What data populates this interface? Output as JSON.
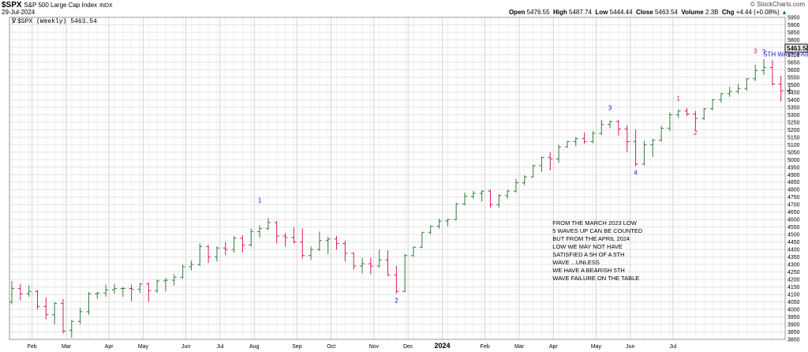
{
  "header": {
    "symbol": "$SPX",
    "description": "S&P 500 Large Cap Index",
    "exchange": "INDX",
    "date": "29-Jul-2024",
    "brand": "© StockCharts.com",
    "open_label": "Open",
    "open": "5476.55",
    "high_label": "High",
    "high": "5487.74",
    "low_label": "Low",
    "low": "5444.44",
    "close_label": "Close",
    "close": "5463.54",
    "volume_label": "Volume",
    "volume": "2.3B",
    "chg_label": "Chg",
    "chg": "+4.44 (+0.08%)",
    "chg_icon": "up-arrow-icon"
  },
  "legend": {
    "icon": "chart-type-icon",
    "text": "$SPX (Weekly) 5463.54"
  },
  "chart_data": {
    "type": "ohlc",
    "title": "$SPX S&P 500 Large Cap Index",
    "series_name": "$SPX (Weekly) 5463.54",
    "ylim": [
      3800,
      5950
    ],
    "y_ticks": [
      3800,
      3850,
      3900,
      3950,
      4000,
      4050,
      4100,
      4150,
      4200,
      4250,
      4300,
      4350,
      4400,
      4450,
      4500,
      4550,
      4600,
      4650,
      4700,
      4750,
      4800,
      4850,
      4900,
      4950,
      5000,
      5050,
      5100,
      5150,
      5200,
      5250,
      5300,
      5350,
      5400,
      5450,
      5500,
      5550,
      5600,
      5650,
      5700,
      5750,
      5800,
      5850,
      5900,
      5950
    ],
    "x_ticks": [
      {
        "label": "Feb",
        "bar": 2
      },
      {
        "label": "Mar",
        "bar": 6
      },
      {
        "label": "Apr",
        "bar": 11
      },
      {
        "label": "May",
        "bar": 15
      },
      {
        "label": "Jun",
        "bar": 20
      },
      {
        "label": "Jul",
        "bar": 24
      },
      {
        "label": "Aug",
        "bar": 28
      },
      {
        "label": "Sep",
        "bar": 33
      },
      {
        "label": "Oct",
        "bar": 37
      },
      {
        "label": "Nov",
        "bar": 42
      },
      {
        "label": "Dec",
        "bar": 46
      },
      {
        "label": "2024",
        "bar": 50,
        "bold": true
      },
      {
        "label": "Feb",
        "bar": 55
      },
      {
        "label": "Mar",
        "bar": 59
      },
      {
        "label": "Apr",
        "bar": 63
      },
      {
        "label": "May",
        "bar": 68
      },
      {
        "label": "Jun",
        "bar": 72
      },
      {
        "label": "Jul",
        "bar": 77
      }
    ],
    "colors": {
      "up": "#2e7d32",
      "down": "#d81b60",
      "wave_blue": "#1a1ad6",
      "wave_pink": "#d81b60",
      "grid": "#e3e3e3"
    },
    "bars": [
      [
        4050,
        4190,
        4035,
        4140
      ],
      [
        4140,
        4170,
        4060,
        4105
      ],
      [
        4105,
        4160,
        4085,
        4120
      ],
      [
        4120,
        4130,
        4000,
        4020
      ],
      [
        4020,
        4080,
        3935,
        3965
      ],
      [
        3965,
        4050,
        3900,
        4040
      ],
      [
        4040,
        4070,
        3840,
        3855
      ],
      [
        3860,
        3930,
        3810,
        3920
      ],
      [
        3920,
        4010,
        3900,
        3985
      ],
      [
        3985,
        4115,
        3965,
        4105
      ],
      [
        4105,
        4115,
        4070,
        4110
      ],
      [
        4110,
        4165,
        4085,
        4130
      ],
      [
        4130,
        4170,
        4105,
        4140
      ],
      [
        4140,
        4150,
        4085,
        4140
      ],
      [
        4140,
        4165,
        4055,
        4135
      ],
      [
        4135,
        4175,
        4110,
        4170
      ],
      [
        4170,
        4180,
        4050,
        4125
      ],
      [
        4125,
        4200,
        4110,
        4190
      ],
      [
        4190,
        4210,
        4120,
        4195
      ],
      [
        4195,
        4235,
        4160,
        4215
      ],
      [
        4215,
        4300,
        4205,
        4285
      ],
      [
        4285,
        4325,
        4260,
        4300
      ],
      [
        4300,
        4440,
        4290,
        4420
      ],
      [
        4420,
        4430,
        4310,
        4350
      ],
      [
        4350,
        4420,
        4320,
        4410
      ],
      [
        4410,
        4450,
        4360,
        4400
      ],
      [
        4400,
        4490,
        4380,
        4475
      ],
      [
        4475,
        4495,
        4380,
        4430
      ],
      [
        4430,
        4540,
        4420,
        4520
      ],
      [
        4520,
        4560,
        4480,
        4540
      ],
      [
        4540,
        4610,
        4530,
        4580
      ],
      [
        4580,
        4590,
        4440,
        4490
      ],
      [
        4490,
        4510,
        4420,
        4480
      ],
      [
        4480,
        4550,
        4440,
        4450
      ],
      [
        4450,
        4540,
        4340,
        4360
      ],
      [
        4360,
        4420,
        4330,
        4400
      ],
      [
        4400,
        4520,
        4390,
        4460
      ],
      [
        4460,
        4485,
        4370,
        4470
      ],
      [
        4470,
        4490,
        4400,
        4440
      ],
      [
        4440,
        4460,
        4320,
        4375
      ],
      [
        4375,
        4380,
        4265,
        4290
      ],
      [
        4290,
        4345,
        4240,
        4305
      ],
      [
        4305,
        4345,
        4235,
        4290
      ],
      [
        4290,
        4400,
        4280,
        4330
      ],
      [
        4330,
        4395,
        4225,
        4230
      ],
      [
        4230,
        4290,
        4105,
        4120
      ],
      [
        4120,
        4370,
        4115,
        4360
      ],
      [
        4360,
        4420,
        4350,
        4415
      ],
      [
        4415,
        4515,
        4410,
        4515
      ],
      [
        4515,
        4560,
        4500,
        4555
      ],
      [
        4555,
        4605,
        4540,
        4590
      ],
      [
        4590,
        4605,
        4555,
        4600
      ],
      [
        4600,
        4710,
        4595,
        4705
      ],
      [
        4705,
        4780,
        4695,
        4755
      ],
      [
        4755,
        4790,
        4740,
        4775
      ],
      [
        4775,
        4795,
        4720,
        4790
      ],
      [
        4790,
        4800,
        4680,
        4700
      ],
      [
        4700,
        4770,
        4680,
        4760
      ],
      [
        4760,
        4800,
        4740,
        4790
      ],
      [
        4790,
        4870,
        4780,
        4845
      ],
      [
        4845,
        4895,
        4830,
        4885
      ],
      [
        4885,
        4965,
        4880,
        4960
      ],
      [
        4960,
        5020,
        4920,
        5015
      ],
      [
        5015,
        5050,
        4930,
        5005
      ],
      [
        5005,
        5100,
        4980,
        5085
      ],
      [
        5085,
        5125,
        5080,
        5120
      ],
      [
        5120,
        5150,
        5090,
        5140
      ],
      [
        5140,
        5180,
        5105,
        5120
      ],
      [
        5120,
        5190,
        5110,
        5175
      ],
      [
        5175,
        5265,
        5165,
        5235
      ],
      [
        5235,
        5260,
        5210,
        5255
      ],
      [
        5255,
        5265,
        5160,
        5205
      ],
      [
        5205,
        5230,
        5050,
        5120
      ],
      [
        5120,
        5200,
        4955,
        4970
      ],
      [
        4970,
        5125,
        4960,
        5100
      ],
      [
        5100,
        5140,
        5020,
        5130
      ],
      [
        5130,
        5225,
        5120,
        5210
      ],
      [
        5210,
        5315,
        5190,
        5300
      ],
      [
        5300,
        5335,
        5280,
        5325
      ],
      [
        5325,
        5345,
        5290,
        5305
      ],
      [
        5305,
        5325,
        5195,
        5275
      ],
      [
        5275,
        5345,
        5265,
        5340
      ],
      [
        5340,
        5405,
        5330,
        5400
      ],
      [
        5400,
        5445,
        5380,
        5440
      ],
      [
        5440,
        5485,
        5420,
        5455
      ],
      [
        5455,
        5505,
        5440,
        5475
      ],
      [
        5475,
        5545,
        5460,
        5540
      ],
      [
        5540,
        5635,
        5525,
        5595
      ],
      [
        5595,
        5670,
        5565,
        5615
      ],
      [
        5615,
        5665,
        5495,
        5505
      ],
      [
        5505,
        5560,
        5390,
        5460
      ],
      [
        5460,
        5490,
        5440,
        5465
      ]
    ],
    "wave_labels": [
      {
        "text": "1",
        "bar": 29,
        "y": 4715,
        "color": "wave_blue"
      },
      {
        "text": "2",
        "bar": 45,
        "y": 4045,
        "color": "wave_blue"
      },
      {
        "text": "3",
        "bar": 70,
        "y": 5330,
        "color": "wave_blue"
      },
      {
        "text": "4",
        "bar": 73,
        "y": 4900,
        "color": "wave_blue"
      },
      {
        "text": "1",
        "bar": 78,
        "y": 5395,
        "color": "wave_pink"
      },
      {
        "text": "2",
        "bar": 80,
        "y": 5165,
        "color": "wave_pink"
      },
      {
        "text": "3",
        "bar": 87,
        "y": 5710,
        "color": "wave_pink"
      },
      {
        "text": "?",
        "bar": 88,
        "y": 5705,
        "color": "wave_blue"
      },
      {
        "text": "5TH WAVE FAILURE",
        "bar": 88,
        "y": 5690,
        "color": "wave_blue"
      }
    ],
    "annotation": {
      "bar": 63,
      "y_top": 4565,
      "lines": [
        "FROM THE MARCH 2023 LOW",
        "5 WAVES UP CAN BE COUNTED",
        "BUT FROM THE APRIL 2024",
        "LOW WE MAY NOT HAVE",
        "SATISFIED A 5H OF A 5TH",
        "WAVE ...UNLESS",
        "WE HAVE A BEARISH 5TH",
        "WAVE FAILURE ON THE TABLE"
      ]
    },
    "last_price_label": "5463.54"
  }
}
